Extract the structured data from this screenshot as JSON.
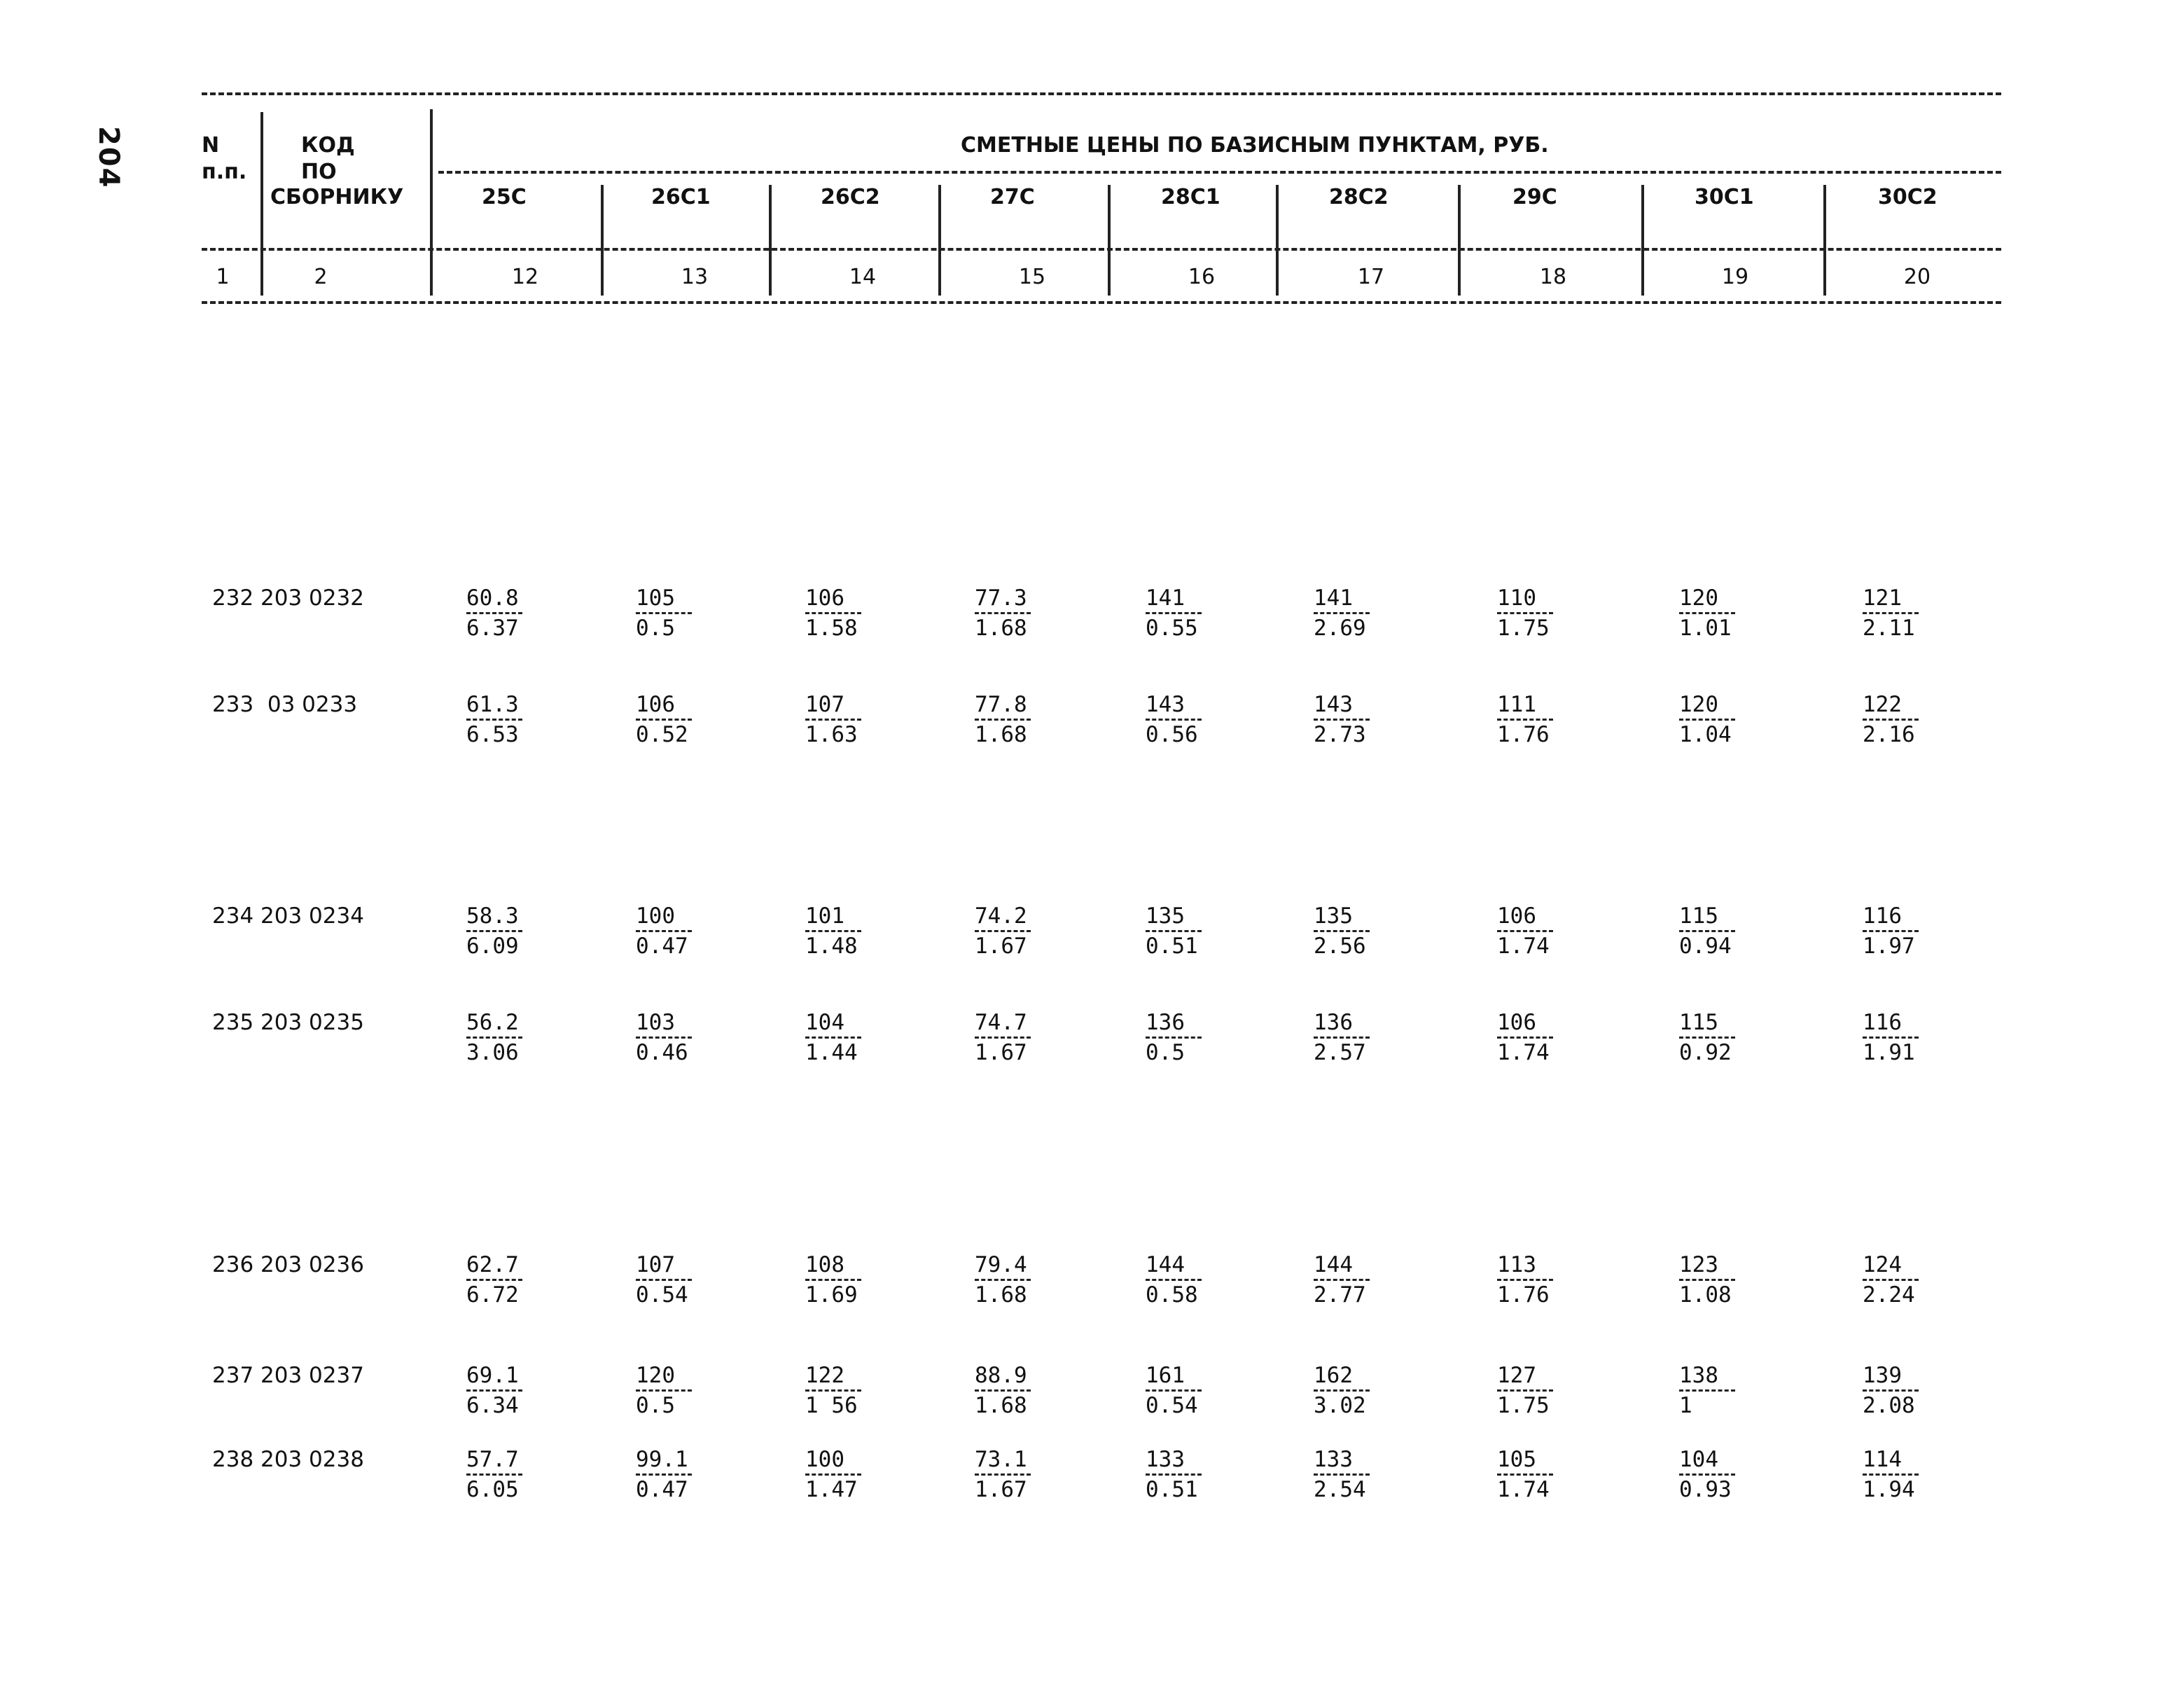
{
  "page_number": "204",
  "header": {
    "col_n": "N",
    "col_pp": "п.п.",
    "col_code_1": "КОД",
    "col_code_2": "ПО",
    "col_code_3": "СБОРНИКУ",
    "title": "СМЕТНЫЕ ЦЕНЫ ПО БАЗИСНЫМ ПУНКТАМ, РУБ.",
    "columns": [
      "25С",
      "26С1",
      "26С2",
      "27С",
      "28С1",
      "28С2",
      "29С",
      "30С1",
      "30С2"
    ],
    "col_numbers": [
      "1",
      "2",
      "12",
      "13",
      "14",
      "15",
      "16",
      "17",
      "18",
      "19",
      "20"
    ]
  },
  "rows": [
    {
      "label": "232 203 0232",
      "values": [
        [
          "60.8",
          "6.37"
        ],
        [
          "105",
          "0.5"
        ],
        [
          "106",
          "1.58"
        ],
        [
          "77.3",
          "1.68"
        ],
        [
          "141",
          "0.55"
        ],
        [
          "141",
          "2.69"
        ],
        [
          "110",
          "1.75"
        ],
        [
          "120",
          "1.01"
        ],
        [
          "121",
          "2.11"
        ]
      ]
    },
    {
      "label": "233  03 0233",
      "values": [
        [
          "61.3",
          "6.53"
        ],
        [
          "106",
          "0.52"
        ],
        [
          "107",
          "1.63"
        ],
        [
          "77.8",
          "1.68"
        ],
        [
          "143",
          "0.56"
        ],
        [
          "143",
          "2.73"
        ],
        [
          "111",
          "1.76"
        ],
        [
          "120",
          "1.04"
        ],
        [
          "122",
          "2.16"
        ]
      ]
    },
    {
      "label": "234 203 0234",
      "values": [
        [
          "58.3",
          "6.09"
        ],
        [
          "100",
          "0.47"
        ],
        [
          "101",
          "1.48"
        ],
        [
          "74.2",
          "1.67"
        ],
        [
          "135",
          "0.51"
        ],
        [
          "135",
          "2.56"
        ],
        [
          "106",
          "1.74"
        ],
        [
          "115",
          "0.94"
        ],
        [
          "116",
          "1.97"
        ]
      ]
    },
    {
      "label": "235 203 0235",
      "values": [
        [
          "56.2",
          "3.06"
        ],
        [
          "103",
          "0.46"
        ],
        [
          "104",
          "1.44"
        ],
        [
          "74.7",
          "1.67"
        ],
        [
          "136",
          "0.5"
        ],
        [
          "136",
          "2.57"
        ],
        [
          "106",
          "1.74"
        ],
        [
          "115",
          "0.92"
        ],
        [
          "116",
          "1.91"
        ]
      ]
    },
    {
      "label": "236 203 0236",
      "values": [
        [
          "62.7",
          "6.72"
        ],
        [
          "107",
          "0.54"
        ],
        [
          "108",
          "1.69"
        ],
        [
          "79.4",
          "1.68"
        ],
        [
          "144",
          "0.58"
        ],
        [
          "144",
          "2.77"
        ],
        [
          "113",
          "1.76"
        ],
        [
          "123",
          "1.08"
        ],
        [
          "124",
          "2.24"
        ]
      ]
    },
    {
      "label": "237 203 0237",
      "values": [
        [
          "69.1",
          "6.34"
        ],
        [
          "120",
          "0.5"
        ],
        [
          "122",
          "1 56"
        ],
        [
          "88.9",
          "1.68"
        ],
        [
          "161",
          "0.54"
        ],
        [
          "162",
          "3.02"
        ],
        [
          "127",
          "1.75"
        ],
        [
          "138",
          "1"
        ],
        [
          "139",
          "2.08"
        ]
      ]
    },
    {
      "label": "238 203 0238",
      "values": [
        [
          "57.7",
          "6.05"
        ],
        [
          "99.1",
          "0.47"
        ],
        [
          "100",
          "1.47"
        ],
        [
          "73.1",
          "1.67"
        ],
        [
          "133",
          "0.51"
        ],
        [
          "133",
          "2.54"
        ],
        [
          "105",
          "1.74"
        ],
        [
          "104",
          "0.93"
        ],
        [
          "114",
          "1.94"
        ]
      ]
    }
  ]
}
